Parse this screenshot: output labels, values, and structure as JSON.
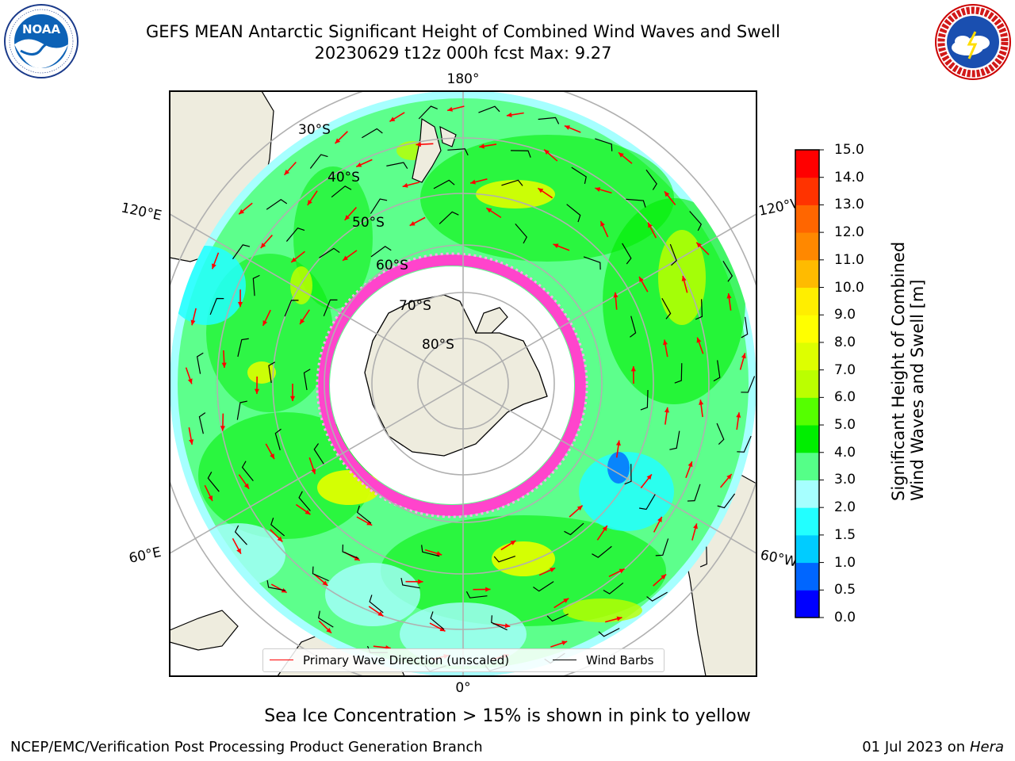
{
  "header": {
    "title_line1": "GEFS MEAN Antarctic Significant Height of Combined Wind Waves and Swell",
    "title_line2": "20230629 t12z 000h fcst   Max: 9.27"
  },
  "logos": {
    "left": "NOAA",
    "left_ring_text": "NATIONAL OCEANIC AND ATMOSPHERIC ADMINISTRATION · U.S. DEPARTMENT OF COMMERCE",
    "right_ring_text": "NATIONAL WEATHER SERVICE"
  },
  "map": {
    "projection": "south-polar-stereographic",
    "longitude_labels": {
      "top": "180°",
      "left_upper": "120°E",
      "right_upper": "120°W",
      "left_lower": "60°E",
      "right_lower": "60°W",
      "bottom": "0°"
    },
    "latitude_labels": [
      "30°S",
      "40°S",
      "50°S",
      "60°S",
      "70°S",
      "80°S"
    ],
    "land_color": "#eeecde",
    "sea_ice_note_color": "#ff44cc"
  },
  "colorbar": {
    "label_line1": "Significant Height of Combined",
    "label_line2": "Wind Waves and Swell [m]",
    "ticks": [
      "0.0",
      "0.5",
      "1.0",
      "1.5",
      "2.0",
      "3.0",
      "4.0",
      "5.0",
      "6.0",
      "7.0",
      "8.0",
      "9.0",
      "10.0",
      "11.0",
      "12.0",
      "13.0",
      "14.0",
      "15.0"
    ],
    "colors": [
      "#0000ff",
      "#0066ff",
      "#00ccff",
      "#22ffff",
      "#a6ffff",
      "#55ff88",
      "#00ee00",
      "#55ff00",
      "#bbff00",
      "#ddff00",
      "#ffff00",
      "#ffee00",
      "#ffbb00",
      "#ff8800",
      "#ff6600",
      "#ff3300",
      "#ff0000"
    ]
  },
  "legend": {
    "wave_direction": "Primary Wave Direction (unscaled)",
    "wind_barbs": "Wind Barbs",
    "wave_color": "#ff0000",
    "barb_color": "#000000"
  },
  "note": "Sea Ice Concentration > 15% is shown in pink to yellow",
  "footer": {
    "left": "NCEP/EMC/Verification Post Processing Product Generation Branch",
    "date": "01 Jul 2023 on ",
    "host": "Hera"
  }
}
